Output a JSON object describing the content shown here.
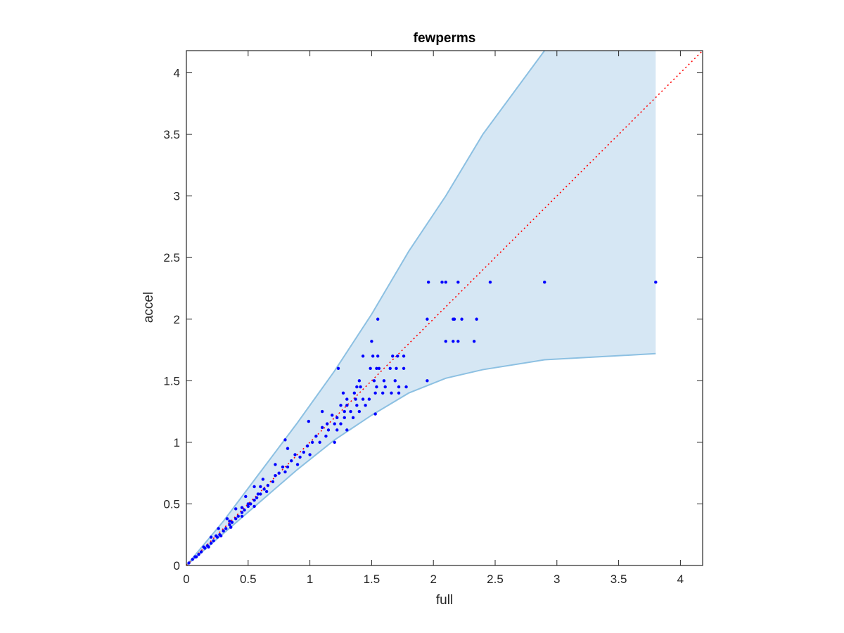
{
  "chart_data": {
    "type": "scatter",
    "title": "fewperms",
    "xlabel": "full",
    "ylabel": "accel",
    "xlim": [
      0,
      4.18
    ],
    "ylim": [
      0,
      4.18
    ],
    "xticks": [
      0,
      0.5,
      1,
      1.5,
      2,
      2.5,
      3,
      3.5,
      4
    ],
    "yticks": [
      0,
      0.5,
      1,
      1.5,
      2,
      2.5,
      3,
      3.5,
      4
    ],
    "xtick_labels": [
      "0",
      "0.5",
      "1",
      "1.5",
      "2",
      "2.5",
      "3",
      "3.5",
      "4"
    ],
    "ytick_labels": [
      "0",
      "0.5",
      "1",
      "1.5",
      "2",
      "2.5",
      "3",
      "3.5",
      "4"
    ],
    "grid": false,
    "colors": {
      "points": "#0000ff",
      "band_fill": "#d6e7f4",
      "band_edge": "#8cc0e2",
      "identity_line": "#ff0000",
      "axes": "#262626"
    },
    "identity_line": {
      "style": "dotted",
      "from": [
        0,
        0
      ],
      "to": [
        4.18,
        4.18
      ]
    },
    "band": {
      "upper": [
        [
          0,
          0
        ],
        [
          0.3,
          0.36
        ],
        [
          0.6,
          0.76
        ],
        [
          0.9,
          1.16
        ],
        [
          1.2,
          1.58
        ],
        [
          1.5,
          2.04
        ],
        [
          1.8,
          2.55
        ],
        [
          2.1,
          3.0
        ],
        [
          2.4,
          3.5
        ],
        [
          2.9,
          4.18
        ]
      ],
      "right_edge_x": 3.8,
      "lower": [
        [
          0,
          0
        ],
        [
          0.3,
          0.26
        ],
        [
          0.6,
          0.52
        ],
        [
          0.9,
          0.78
        ],
        [
          1.2,
          1.02
        ],
        [
          1.5,
          1.22
        ],
        [
          1.8,
          1.4
        ],
        [
          2.1,
          1.52
        ],
        [
          2.4,
          1.59
        ],
        [
          2.9,
          1.67
        ],
        [
          3.8,
          1.72
        ]
      ]
    },
    "series": [
      {
        "points": [
          [
            3.8,
            2.3
          ],
          [
            2.9,
            2.3
          ],
          [
            2.46,
            2.3
          ],
          [
            2.2,
            2.3
          ],
          [
            2.1,
            2.3
          ],
          [
            2.07,
            2.3
          ],
          [
            1.96,
            2.3
          ],
          [
            2.35,
            2.0
          ],
          [
            2.23,
            2.0
          ],
          [
            2.17,
            2.0
          ],
          [
            2.16,
            2.0
          ],
          [
            1.95,
            2.0
          ],
          [
            1.55,
            2.0
          ],
          [
            2.33,
            1.82
          ],
          [
            2.2,
            1.82
          ],
          [
            2.16,
            1.82
          ],
          [
            2.1,
            1.82
          ],
          [
            1.5,
            1.82
          ],
          [
            1.76,
            1.7
          ],
          [
            1.71,
            1.7
          ],
          [
            1.67,
            1.7
          ],
          [
            1.55,
            1.7
          ],
          [
            1.51,
            1.7
          ],
          [
            1.43,
            1.7
          ],
          [
            1.76,
            1.6
          ],
          [
            1.7,
            1.6
          ],
          [
            1.65,
            1.6
          ],
          [
            1.56,
            1.6
          ],
          [
            1.54,
            1.6
          ],
          [
            1.49,
            1.6
          ],
          [
            1.23,
            1.6
          ],
          [
            1.95,
            1.5
          ],
          [
            1.69,
            1.5
          ],
          [
            1.6,
            1.5
          ],
          [
            1.52,
            1.5
          ],
          [
            1.4,
            1.5
          ],
          [
            1.78,
            1.45
          ],
          [
            1.72,
            1.45
          ],
          [
            1.61,
            1.45
          ],
          [
            1.54,
            1.45
          ],
          [
            1.41,
            1.45
          ],
          [
            1.38,
            1.45
          ],
          [
            1.72,
            1.4
          ],
          [
            1.66,
            1.4
          ],
          [
            1.59,
            1.4
          ],
          [
            1.53,
            1.4
          ],
          [
            1.36,
            1.4
          ],
          [
            1.27,
            1.4
          ],
          [
            1.48,
            1.35
          ],
          [
            1.43,
            1.35
          ],
          [
            1.37,
            1.35
          ],
          [
            1.3,
            1.35
          ],
          [
            1.45,
            1.3
          ],
          [
            1.38,
            1.3
          ],
          [
            1.3,
            1.3
          ],
          [
            1.25,
            1.3
          ],
          [
            1.4,
            1.25
          ],
          [
            1.33,
            1.25
          ],
          [
            1.28,
            1.25
          ],
          [
            1.53,
            1.23
          ],
          [
            1.35,
            1.2
          ],
          [
            1.28,
            1.2
          ],
          [
            1.22,
            1.2
          ],
          [
            1.18,
            1.22
          ],
          [
            1.25,
            1.15
          ],
          [
            1.2,
            1.15
          ],
          [
            1.14,
            1.15
          ],
          [
            1.3,
            1.1
          ],
          [
            1.22,
            1.1
          ],
          [
            1.15,
            1.1
          ],
          [
            1.1,
            1.12
          ],
          [
            1.05,
            1.05
          ],
          [
            1.13,
            1.05
          ],
          [
            1.2,
            1.0
          ],
          [
            1.08,
            1.0
          ],
          [
            1.02,
            1.0
          ],
          [
            0.98,
            0.97
          ],
          [
            0.95,
            0.92
          ],
          [
            1.0,
            0.9
          ],
          [
            0.92,
            0.88
          ],
          [
            0.88,
            0.9
          ],
          [
            0.85,
            0.85
          ],
          [
            0.9,
            0.82
          ],
          [
            0.82,
            0.8
          ],
          [
            0.78,
            0.8
          ],
          [
            0.8,
            0.76
          ],
          [
            0.75,
            0.75
          ],
          [
            0.72,
            0.73
          ],
          [
            0.7,
            0.68
          ],
          [
            0.66,
            0.65
          ],
          [
            0.63,
            0.62
          ],
          [
            0.6,
            0.58
          ],
          [
            0.57,
            0.55
          ],
          [
            0.55,
            0.53
          ],
          [
            0.52,
            0.5
          ],
          [
            0.5,
            0.48
          ],
          [
            0.47,
            0.45
          ],
          [
            0.45,
            0.43
          ],
          [
            0.42,
            0.4
          ],
          [
            0.4,
            0.38
          ],
          [
            0.37,
            0.35
          ],
          [
            0.35,
            0.33
          ],
          [
            0.32,
            0.3
          ],
          [
            0.3,
            0.28
          ],
          [
            0.27,
            0.25
          ],
          [
            0.25,
            0.23
          ],
          [
            0.22,
            0.2
          ],
          [
            0.2,
            0.18
          ],
          [
            0.17,
            0.16
          ],
          [
            0.15,
            0.14
          ],
          [
            0.12,
            0.11
          ],
          [
            0.1,
            0.09
          ],
          [
            0.07,
            0.07
          ],
          [
            0.05,
            0.05
          ],
          [
            0.02,
            0.02
          ],
          [
            0.82,
            0.95
          ],
          [
            0.72,
            0.82
          ],
          [
            0.62,
            0.7
          ],
          [
            0.55,
            0.64
          ],
          [
            0.48,
            0.56
          ],
          [
            0.4,
            0.46
          ],
          [
            0.33,
            0.38
          ],
          [
            0.26,
            0.3
          ],
          [
            0.2,
            0.23
          ],
          [
            0.8,
            1.02
          ],
          [
            0.99,
            1.17
          ],
          [
            1.1,
            1.25
          ],
          [
            0.58,
            0.58
          ],
          [
            0.5,
            0.5
          ],
          [
            0.65,
            0.6
          ],
          [
            0.55,
            0.48
          ],
          [
            0.45,
            0.4
          ],
          [
            0.36,
            0.31
          ],
          [
            0.28,
            0.24
          ],
          [
            0.18,
            0.15
          ],
          [
            0.08,
            0.07
          ],
          [
            0.35,
            0.36
          ],
          [
            0.24,
            0.24
          ],
          [
            0.14,
            0.15
          ],
          [
            0.6,
            0.64
          ],
          [
            0.45,
            0.47
          ]
        ]
      }
    ]
  }
}
